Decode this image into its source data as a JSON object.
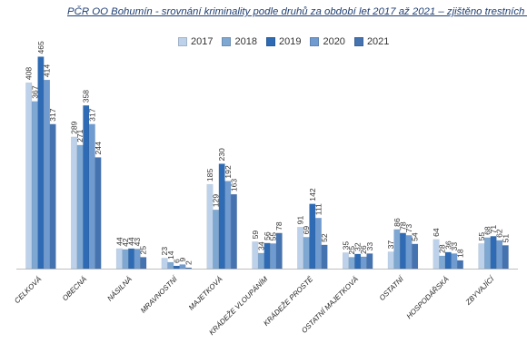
{
  "chart_data": {
    "type": "bar",
    "title": "PČR OO Bohumín - srovnání kriminality podle druhů za období let 2017 až 2021 – zjištěno trestních činů",
    "categories": [
      "CELKOVÁ",
      "OBECNÁ",
      "NÁSILNÁ",
      "MRAVNOSTNÍ",
      "MAJETKOVÁ",
      "KRÁDEŽE VLOUPÁNÍM",
      "KRÁDEŽE PROSTÉ",
      "OSTATNÍ MAJETKOVÁ",
      "OSTATNÍ",
      "HOSPODÁŘSKÁ",
      "ZBYVAJÍCÍ"
    ],
    "series": [
      {
        "name": "2017",
        "color": "#bdd2ea",
        "values": [
          408,
          289,
          44,
          23,
          185,
          59,
          91,
          35,
          37,
          64,
          55
        ]
      },
      {
        "name": "2018",
        "color": "#7ea7d2",
        "values": [
          367,
          271,
          42,
          14,
          129,
          34,
          69,
          25,
          86,
          28,
          68
        ]
      },
      {
        "name": "2019",
        "color": "#2e6bb4",
        "values": [
          465,
          358,
          44,
          6,
          230,
          56,
          142,
          32,
          78,
          36,
          71
        ]
      },
      {
        "name": "2020",
        "color": "#6f9bd0",
        "values": [
          414,
          317,
          43,
          9,
          192,
          55,
          111,
          26,
          73,
          33,
          62
        ]
      },
      {
        "name": "2021",
        "color": "#4573b0",
        "values": [
          317,
          244,
          25,
          2,
          163,
          78,
          52,
          33,
          54,
          18,
          51
        ]
      }
    ],
    "ylim": [
      0,
      470
    ],
    "grid": false,
    "legend_position": "top"
  }
}
